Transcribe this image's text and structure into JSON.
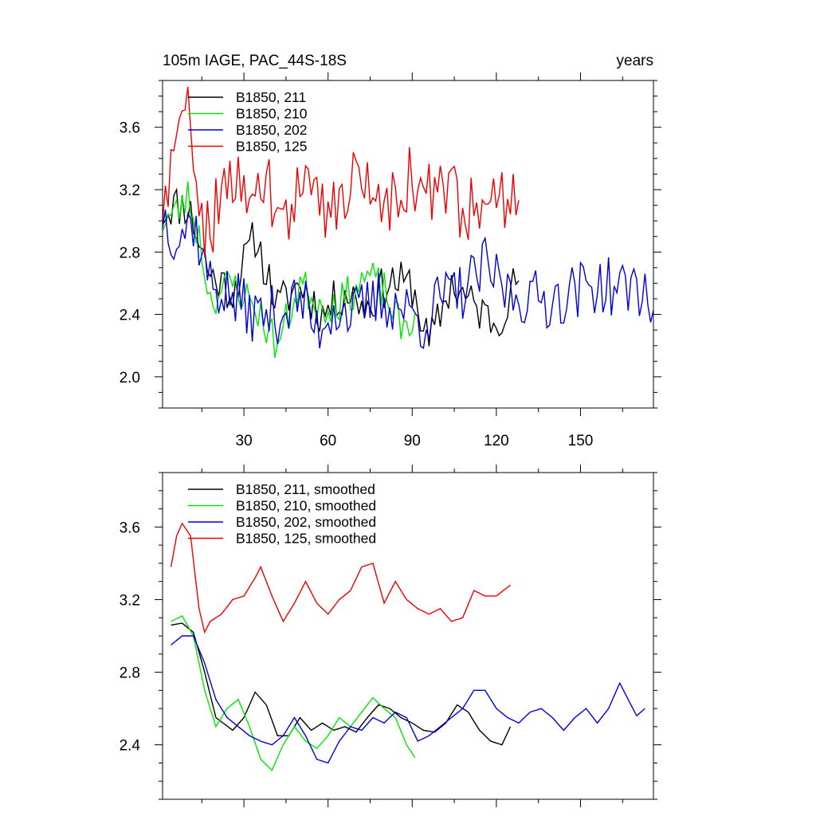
{
  "chart_data": [
    {
      "type": "line",
      "title_left": "105m IAGE, PAC_44S-18S",
      "title_right": "years",
      "xlabel": "",
      "ylabel": "",
      "xlim": [
        1,
        176
      ],
      "ylim": [
        1.8,
        3.9
      ],
      "x_ticks": [
        30,
        60,
        90,
        120,
        150
      ],
      "y_ticks": [
        2.0,
        2.4,
        2.8,
        3.2,
        3.6
      ],
      "y_tick_labels": [
        "2.0",
        "2.4",
        "2.8",
        "3.2",
        "3.6"
      ],
      "legend_position": "top-left",
      "series": [
        {
          "name": "B1850, 211",
          "color": "#000000",
          "x_start": 1,
          "x_end": 128,
          "knots": [
            [
              1,
              3.05
            ],
            [
              4,
              3.1
            ],
            [
              10,
              3.1
            ],
            [
              18,
              2.65
            ],
            [
              26,
              2.55
            ],
            [
              34,
              2.9
            ],
            [
              42,
              2.45
            ],
            [
              50,
              2.6
            ],
            [
              58,
              2.4
            ],
            [
              66,
              2.55
            ],
            [
              74,
              2.45
            ],
            [
              82,
              2.62
            ],
            [
              90,
              2.58
            ],
            [
              96,
              2.2
            ],
            [
              104,
              2.6
            ],
            [
              112,
              2.45
            ],
            [
              120,
              2.35
            ],
            [
              128,
              2.65
            ]
          ],
          "amp": 0.09,
          "seed": 11
        },
        {
          "name": "B1850, 210",
          "color": "#00e800",
          "x_start": 1,
          "x_end": 91,
          "knots": [
            [
              1,
              3.0
            ],
            [
              6,
              3.05
            ],
            [
              10,
              3.15
            ],
            [
              14,
              2.9
            ],
            [
              18,
              2.5
            ],
            [
              26,
              2.6
            ],
            [
              34,
              2.45
            ],
            [
              42,
              2.2
            ],
            [
              50,
              2.6
            ],
            [
              58,
              2.45
            ],
            [
              66,
              2.5
            ],
            [
              74,
              2.65
            ],
            [
              80,
              2.55
            ],
            [
              86,
              2.3
            ],
            [
              91,
              2.4
            ]
          ],
          "amp": 0.08,
          "seed": 23
        },
        {
          "name": "B1850, 202",
          "color": "#0000dd",
          "x_start": 1,
          "x_end": 176,
          "knots": [
            [
              1,
              3.05
            ],
            [
              6,
              2.9
            ],
            [
              12,
              3.0
            ],
            [
              18,
              2.6
            ],
            [
              26,
              2.5
            ],
            [
              34,
              2.4
            ],
            [
              42,
              2.4
            ],
            [
              50,
              2.5
            ],
            [
              56,
              2.3
            ],
            [
              62,
              2.45
            ],
            [
              70,
              2.4
            ],
            [
              78,
              2.5
            ],
            [
              86,
              2.45
            ],
            [
              94,
              2.35
            ],
            [
              100,
              2.5
            ],
            [
              108,
              2.55
            ],
            [
              116,
              2.7
            ],
            [
              124,
              2.55
            ],
            [
              132,
              2.5
            ],
            [
              140,
              2.5
            ],
            [
              148,
              2.55
            ],
            [
              156,
              2.6
            ],
            [
              164,
              2.55
            ],
            [
              170,
              2.6
            ],
            [
              176,
              2.45
            ]
          ],
          "amp": 0.12,
          "seed": 37
        },
        {
          "name": "B1850, 125",
          "color": "#ee0000",
          "x_start": 1,
          "x_end": 128,
          "knots": [
            [
              1,
              3.1
            ],
            [
              5,
              3.35
            ],
            [
              9,
              3.7
            ],
            [
              12,
              3.5
            ],
            [
              16,
              3.0
            ],
            [
              20,
              3.05
            ],
            [
              26,
              3.2
            ],
            [
              32,
              3.3
            ],
            [
              36,
              3.35
            ],
            [
              40,
              3.1
            ],
            [
              44,
              3.0
            ],
            [
              50,
              3.2
            ],
            [
              56,
              3.1
            ],
            [
              62,
              3.1
            ],
            [
              68,
              3.25
            ],
            [
              74,
              3.35
            ],
            [
              80,
              3.0
            ],
            [
              86,
              3.3
            ],
            [
              92,
              3.2
            ],
            [
              98,
              3.15
            ],
            [
              104,
              3.15
            ],
            [
              110,
              3.1
            ],
            [
              116,
              3.2
            ],
            [
              122,
              3.15
            ],
            [
              128,
              3.3
            ]
          ],
          "amp": 0.15,
          "seed": 59
        }
      ]
    },
    {
      "type": "line",
      "title_left": "",
      "title_right": "",
      "xlabel": "",
      "ylabel": "",
      "xlim": [
        1,
        176
      ],
      "ylim": [
        2.1,
        3.9
      ],
      "x_ticks": [
        30,
        60,
        90,
        120,
        150
      ],
      "y_ticks": [
        2.4,
        2.8,
        3.2,
        3.6
      ],
      "y_tick_labels": [
        "2.4",
        "2.8",
        "3.2",
        "3.6"
      ],
      "legend_position": "top-left",
      "series": [
        {
          "name": "B1850, 211, smoothed",
          "color": "#000000",
          "x_start": 4,
          "x_end": 125,
          "knots": [
            [
              4,
              3.06
            ],
            [
              8,
              3.07
            ],
            [
              12,
              3.02
            ],
            [
              16,
              2.8
            ],
            [
              20,
              2.55
            ],
            [
              26,
              2.48
            ],
            [
              30,
              2.55
            ],
            [
              34,
              2.69
            ],
            [
              38,
              2.62
            ],
            [
              42,
              2.45
            ],
            [
              46,
              2.45
            ],
            [
              50,
              2.55
            ],
            [
              54,
              2.48
            ],
            [
              58,
              2.52
            ],
            [
              62,
              2.48
            ],
            [
              66,
              2.5
            ],
            [
              70,
              2.47
            ],
            [
              74,
              2.55
            ],
            [
              78,
              2.62
            ],
            [
              82,
              2.6
            ],
            [
              86,
              2.55
            ],
            [
              90,
              2.52
            ],
            [
              94,
              2.48
            ],
            [
              98,
              2.47
            ],
            [
              102,
              2.52
            ],
            [
              106,
              2.62
            ],
            [
              110,
              2.58
            ],
            [
              114,
              2.48
            ],
            [
              118,
              2.42
            ],
            [
              122,
              2.4
            ],
            [
              125,
              2.5
            ]
          ],
          "amp": 0.0,
          "seed": 1
        },
        {
          "name": "B1850, 210, smoothed",
          "color": "#00e800",
          "x_start": 4,
          "x_end": 91,
          "knots": [
            [
              4,
              3.08
            ],
            [
              8,
              3.11
            ],
            [
              12,
              3.0
            ],
            [
              16,
              2.7
            ],
            [
              20,
              2.5
            ],
            [
              24,
              2.6
            ],
            [
              28,
              2.65
            ],
            [
              32,
              2.5
            ],
            [
              36,
              2.32
            ],
            [
              40,
              2.26
            ],
            [
              44,
              2.4
            ],
            [
              48,
              2.5
            ],
            [
              52,
              2.42
            ],
            [
              56,
              2.38
            ],
            [
              60,
              2.45
            ],
            [
              64,
              2.55
            ],
            [
              68,
              2.5
            ],
            [
              72,
              2.58
            ],
            [
              76,
              2.66
            ],
            [
              80,
              2.6
            ],
            [
              84,
              2.55
            ],
            [
              88,
              2.4
            ],
            [
              91,
              2.33
            ]
          ],
          "amp": 0.0,
          "seed": 2
        },
        {
          "name": "B1850, 202, smoothed",
          "color": "#0000dd",
          "x_start": 4,
          "x_end": 173,
          "knots": [
            [
              4,
              2.95
            ],
            [
              8,
              3.0
            ],
            [
              12,
              3.0
            ],
            [
              16,
              2.85
            ],
            [
              20,
              2.65
            ],
            [
              24,
              2.55
            ],
            [
              28,
              2.5
            ],
            [
              32,
              2.45
            ],
            [
              36,
              2.42
            ],
            [
              40,
              2.4
            ],
            [
              44,
              2.45
            ],
            [
              48,
              2.55
            ],
            [
              52,
              2.45
            ],
            [
              56,
              2.32
            ],
            [
              60,
              2.3
            ],
            [
              64,
              2.42
            ],
            [
              68,
              2.5
            ],
            [
              72,
              2.48
            ],
            [
              76,
              2.55
            ],
            [
              80,
              2.52
            ],
            [
              84,
              2.58
            ],
            [
              88,
              2.55
            ],
            [
              92,
              2.42
            ],
            [
              96,
              2.45
            ],
            [
              100,
              2.5
            ],
            [
              104,
              2.55
            ],
            [
              108,
              2.6
            ],
            [
              112,
              2.7
            ],
            [
              116,
              2.7
            ],
            [
              120,
              2.6
            ],
            [
              124,
              2.55
            ],
            [
              128,
              2.52
            ],
            [
              132,
              2.58
            ],
            [
              136,
              2.6
            ],
            [
              140,
              2.55
            ],
            [
              144,
              2.48
            ],
            [
              148,
              2.55
            ],
            [
              152,
              2.6
            ],
            [
              156,
              2.52
            ],
            [
              160,
              2.6
            ],
            [
              164,
              2.74
            ],
            [
              168,
              2.62
            ],
            [
              170,
              2.56
            ],
            [
              173,
              2.6
            ]
          ],
          "amp": 0.0,
          "seed": 3
        },
        {
          "name": "B1850, 125, smoothed",
          "color": "#ee0000",
          "x_start": 4,
          "x_end": 125,
          "knots": [
            [
              4,
              3.38
            ],
            [
              6,
              3.55
            ],
            [
              8,
              3.62
            ],
            [
              11,
              3.55
            ],
            [
              14,
              3.15
            ],
            [
              16,
              3.02
            ],
            [
              18,
              3.08
            ],
            [
              22,
              3.12
            ],
            [
              26,
              3.2
            ],
            [
              30,
              3.22
            ],
            [
              34,
              3.32
            ],
            [
              36,
              3.38
            ],
            [
              40,
              3.22
            ],
            [
              44,
              3.08
            ],
            [
              48,
              3.18
            ],
            [
              52,
              3.3
            ],
            [
              56,
              3.18
            ],
            [
              60,
              3.12
            ],
            [
              64,
              3.2
            ],
            [
              68,
              3.25
            ],
            [
              72,
              3.38
            ],
            [
              76,
              3.4
            ],
            [
              80,
              3.18
            ],
            [
              84,
              3.3
            ],
            [
              88,
              3.2
            ],
            [
              92,
              3.15
            ],
            [
              96,
              3.12
            ],
            [
              100,
              3.15
            ],
            [
              104,
              3.08
            ],
            [
              108,
              3.1
            ],
            [
              112,
              3.25
            ],
            [
              116,
              3.22
            ],
            [
              120,
              3.22
            ],
            [
              125,
              3.28
            ]
          ],
          "amp": 0.0,
          "seed": 4
        }
      ]
    }
  ]
}
